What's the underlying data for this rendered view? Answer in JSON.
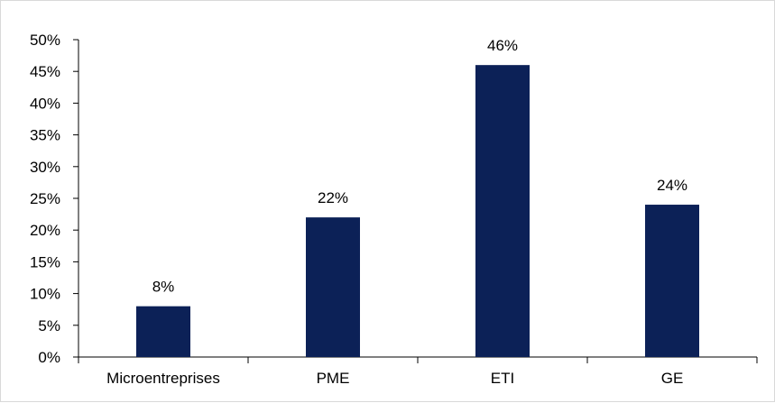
{
  "chart_data": {
    "type": "bar",
    "categories": [
      "Microentreprises",
      "PME",
      "ETI",
      "GE"
    ],
    "values": [
      8,
      22,
      46,
      24
    ],
    "value_labels": [
      "8%",
      "22%",
      "46%",
      "24%"
    ],
    "title": "",
    "xlabel": "",
    "ylabel": "",
    "ylim": [
      0,
      50
    ],
    "yticks": [
      0,
      5,
      10,
      15,
      20,
      25,
      30,
      35,
      40,
      45,
      50
    ],
    "ytick_labels": [
      "0%",
      "5%",
      "10%",
      "15%",
      "20%",
      "25%",
      "30%",
      "35%",
      "40%",
      "45%",
      "50%"
    ],
    "grid": false,
    "legend": "none",
    "bar_color": "#0c2157",
    "axis_color": "#000000"
  }
}
